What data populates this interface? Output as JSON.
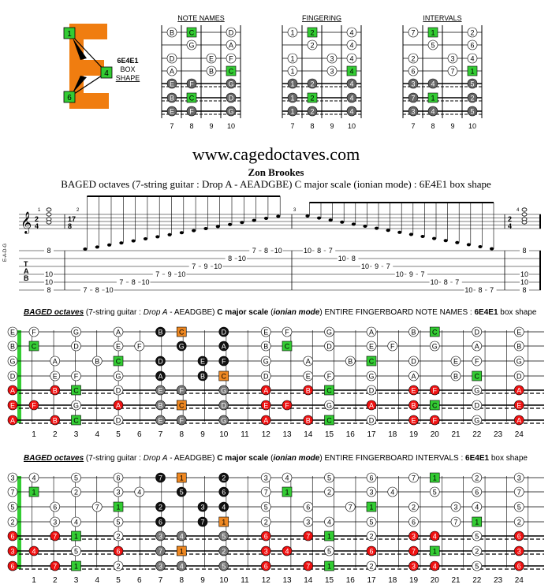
{
  "logo": {
    "letter": "E",
    "markers": [
      "1",
      "4",
      "6"
    ],
    "caption_lines": [
      "6E4E1",
      "BOX",
      "SHAPE"
    ]
  },
  "mini_diagrams": {
    "titles": [
      "NOTE NAMES",
      "FINGERING",
      "INTERVALS"
    ],
    "fret_numbers": [
      "7",
      "8",
      "9",
      "10"
    ],
    "note_names": [
      [
        "B",
        "C",
        "",
        "D"
      ],
      [
        "",
        "G",
        "",
        "A"
      ],
      [
        "D",
        "",
        "E",
        "F"
      ],
      [
        "A",
        "",
        "B",
        "C"
      ],
      [
        "E",
        "F",
        "",
        "G"
      ],
      [
        "B",
        "C",
        "",
        "D"
      ],
      [
        "E",
        "F",
        "",
        "G"
      ]
    ],
    "fingering": [
      [
        "1",
        "2",
        "",
        "4"
      ],
      [
        "",
        "2",
        "",
        "4"
      ],
      [
        "1",
        "",
        "3",
        "4"
      ],
      [
        "1",
        "",
        "3",
        "4"
      ],
      [
        "1",
        "2",
        "",
        "4"
      ],
      [
        "1",
        "2",
        "",
        "4"
      ],
      [
        "1",
        "2",
        "",
        "4"
      ]
    ],
    "intervals": [
      [
        "7",
        "1",
        "",
        "2"
      ],
      [
        "",
        "5",
        "",
        "6"
      ],
      [
        "2",
        "",
        "3",
        "4"
      ],
      [
        "6",
        "",
        "7",
        "1"
      ],
      [
        "3",
        "4",
        "",
        "5"
      ],
      [
        "7",
        "1",
        "",
        "2"
      ],
      [
        "3",
        "4",
        "",
        "5"
      ]
    ]
  },
  "header": {
    "site": "www.cagedoctaves.com",
    "author": "Zon Brookes",
    "subtitle": "BAGED octaves (7-string guitar : Drop A - AEADGBE) C major scale (ionian mode) : 6E4E1 box shape"
  },
  "notation": {
    "time_signature_start": [
      "2",
      "4"
    ],
    "time_signature_mid": [
      "17",
      "8"
    ],
    "time_signature_end": [
      "2",
      "4"
    ],
    "measure_numbers": [
      "1",
      "2",
      "3",
      "4"
    ],
    "tuning_label": "E-A-D-G",
    "tab_label": [
      "T",
      "A",
      "B"
    ],
    "tab_columns": [
      [
        "8",
        "",
        "",
        "10",
        "10",
        "8"
      ],
      [
        "",
        "",
        "",
        "",
        "",
        "7"
      ],
      [
        "",
        "",
        "",
        "",
        "",
        "8"
      ],
      [
        "",
        "",
        "",
        "",
        "",
        "10"
      ],
      [
        "",
        "",
        "",
        "",
        "7",
        ""
      ],
      [
        "",
        "",
        "",
        "",
        "8",
        ""
      ],
      [
        "",
        "",
        "",
        "",
        "10",
        ""
      ],
      [
        "",
        "",
        "",
        "7",
        "",
        ""
      ],
      [
        "",
        "",
        "",
        "9",
        "",
        ""
      ],
      [
        "",
        "",
        "",
        "10",
        "",
        ""
      ],
      [
        "",
        "",
        "7",
        "",
        "",
        ""
      ],
      [
        "",
        "",
        "9",
        "",
        "",
        ""
      ],
      [
        "",
        "",
        "10",
        "",
        "",
        ""
      ],
      [
        "",
        "8",
        "",
        "",
        "",
        ""
      ],
      [
        "",
        "10",
        "",
        "",
        "",
        ""
      ],
      [
        "7",
        "",
        "",
        "",
        "",
        ""
      ],
      [
        "8",
        "",
        "",
        "",
        "",
        ""
      ],
      [
        "10",
        "",
        "",
        "",
        "",
        ""
      ],
      [
        "10",
        "",
        "",
        "",
        "",
        ""
      ],
      [
        "8",
        "",
        "",
        "",
        "",
        ""
      ],
      [
        "7",
        "",
        "",
        "",
        "",
        ""
      ],
      [
        "",
        "10",
        "",
        "",
        "",
        ""
      ],
      [
        "",
        "8",
        "",
        "",
        "",
        ""
      ],
      [
        "",
        "",
        "10",
        "",
        "",
        ""
      ],
      [
        "",
        "",
        "9",
        "",
        "",
        ""
      ],
      [
        "",
        "",
        "7",
        "",
        "",
        ""
      ],
      [
        "",
        "",
        "",
        "10",
        "",
        ""
      ],
      [
        "",
        "",
        "",
        "9",
        "",
        ""
      ],
      [
        "",
        "",
        "",
        "7",
        "",
        ""
      ],
      [
        "",
        "",
        "",
        "",
        "10",
        ""
      ],
      [
        "",
        "",
        "",
        "",
        "8",
        ""
      ],
      [
        "",
        "",
        "",
        "",
        "7",
        ""
      ],
      [
        "",
        "",
        "",
        "",
        "",
        "10"
      ],
      [
        "",
        "",
        "",
        "",
        "",
        "8"
      ],
      [
        "",
        "",
        "",
        "",
        "",
        "7"
      ],
      [
        "8",
        "",
        "",
        "10",
        "10",
        "8"
      ]
    ]
  },
  "fretboards": {
    "fret_numbers": [
      "1",
      "2",
      "3",
      "4",
      "5",
      "6",
      "7",
      "8",
      "9",
      "10",
      "11",
      "12",
      "13",
      "14",
      "15",
      "16",
      "17",
      "18",
      "19",
      "20",
      "21",
      "22",
      "23",
      "24"
    ],
    "note_names_title": {
      "prefix": "BAGED octaves",
      "part1": " (7-string guitar : ",
      "drop": "Drop A",
      "part2": " - AEADGBE) ",
      "scale": "C major scale",
      "part3": "  (",
      "mode": "ionian mode",
      "part4": ") ENTIRE FINGERBOARD  NOTE NAMES  : ",
      "shape": "6E4E1",
      "part5": " box shape"
    },
    "intervals_title": {
      "prefix": "BAGED octaves",
      "part1": "  (7-string guitar : ",
      "drop": "Drop A",
      "part2": " - AEADGBE) ",
      "scale": "C major scale",
      "part3": "  (",
      "mode": "ionian mode",
      "part4": ") ENTIRE FINGERBOARD  INTERVALS  : ",
      "shape": "6E4E1",
      "part5": " box shape"
    },
    "open_names": [
      "E",
      "B",
      "G",
      "D",
      "A",
      "E",
      "A"
    ],
    "open_intervals": [
      "3",
      "7",
      "5",
      "2",
      "6",
      "3",
      "6"
    ],
    "colors": {
      "root_green": "#33cc33",
      "orange": "#ee8822",
      "red": "#ee1111",
      "gray": "#777777",
      "black": "#111111",
      "white": "#ffffff"
    }
  }
}
